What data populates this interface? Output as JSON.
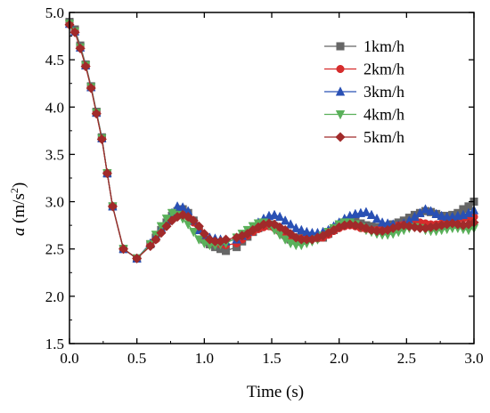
{
  "chart_data": {
    "type": "line",
    "xlabel": "Time (s)",
    "ylabel_italic": "a",
    "ylabel_unit_prefix": "(m/s",
    "ylabel_unit_exp": "2",
    "ylabel_unit_suffix": ")",
    "xlim": [
      0.0,
      3.0
    ],
    "ylim": [
      1.5,
      5.0
    ],
    "xticks": [
      "0.0",
      "0.5",
      "1.0",
      "1.5",
      "2.0",
      "2.5",
      "3.0"
    ],
    "yticks": [
      "1.5",
      "2.0",
      "2.5",
      "3.0",
      "3.5",
      "4.0",
      "4.5",
      "5.0"
    ],
    "legend_position": "top-right",
    "series": [
      {
        "name": "1km/h",
        "color": "#666666",
        "marker": "square",
        "x": [
          0.0,
          0.04,
          0.08,
          0.12,
          0.16,
          0.2,
          0.24,
          0.28,
          0.32,
          0.4,
          0.5,
          0.6,
          0.64,
          0.68,
          0.72,
          0.76,
          0.8,
          0.84,
          0.88,
          0.92,
          0.96,
          1.0,
          1.04,
          1.08,
          1.12,
          1.16,
          1.24,
          1.28,
          1.32,
          1.36,
          1.4,
          1.44,
          1.48,
          1.52,
          1.56,
          1.6,
          1.64,
          1.68,
          1.72,
          1.76,
          1.8,
          1.84,
          1.88,
          1.92,
          1.96,
          2.0,
          2.04,
          2.08,
          2.12,
          2.16,
          2.2,
          2.24,
          2.28,
          2.32,
          2.36,
          2.4,
          2.44,
          2.48,
          2.52,
          2.56,
          2.6,
          2.64,
          2.68,
          2.72,
          2.76,
          2.8,
          2.84,
          2.88,
          2.92,
          2.96,
          3.0
        ],
        "y": [
          4.9,
          4.82,
          4.65,
          4.45,
          4.22,
          3.95,
          3.68,
          3.3,
          2.95,
          2.5,
          2.4,
          2.55,
          2.62,
          2.7,
          2.78,
          2.85,
          2.9,
          2.92,
          2.88,
          2.8,
          2.7,
          2.6,
          2.55,
          2.52,
          2.5,
          2.48,
          2.52,
          2.58,
          2.63,
          2.68,
          2.72,
          2.75,
          2.76,
          2.74,
          2.7,
          2.65,
          2.6,
          2.6,
          2.62,
          2.64,
          2.63,
          2.62,
          2.62,
          2.66,
          2.7,
          2.75,
          2.78,
          2.8,
          2.79,
          2.77,
          2.75,
          2.74,
          2.73,
          2.73,
          2.74,
          2.76,
          2.78,
          2.8,
          2.83,
          2.86,
          2.88,
          2.9,
          2.89,
          2.87,
          2.85,
          2.85,
          2.86,
          2.88,
          2.92,
          2.95,
          3.0
        ]
      },
      {
        "name": "2km/h",
        "color": "#d62c2c",
        "marker": "circle",
        "x": [
          0.0,
          0.04,
          0.08,
          0.12,
          0.16,
          0.2,
          0.24,
          0.28,
          0.32,
          0.4,
          0.5,
          0.6,
          0.64,
          0.68,
          0.72,
          0.76,
          0.8,
          0.84,
          0.88,
          0.92,
          0.96,
          1.0,
          1.04,
          1.08,
          1.12,
          1.16,
          1.24,
          1.28,
          1.32,
          1.36,
          1.4,
          1.44,
          1.48,
          1.52,
          1.56,
          1.6,
          1.64,
          1.68,
          1.72,
          1.76,
          1.8,
          1.84,
          1.88,
          1.92,
          1.96,
          2.0,
          2.04,
          2.08,
          2.12,
          2.16,
          2.2,
          2.24,
          2.28,
          2.32,
          2.36,
          2.4,
          2.44,
          2.48,
          2.52,
          2.56,
          2.6,
          2.64,
          2.68,
          2.72,
          2.76,
          2.8,
          2.84,
          2.88,
          2.92,
          2.96,
          3.0
        ],
        "y": [
          4.88,
          4.8,
          4.63,
          4.44,
          4.21,
          3.94,
          3.67,
          3.3,
          2.95,
          2.5,
          2.4,
          2.54,
          2.6,
          2.68,
          2.75,
          2.82,
          2.86,
          2.87,
          2.84,
          2.78,
          2.7,
          2.62,
          2.58,
          2.56,
          2.55,
          2.54,
          2.56,
          2.6,
          2.64,
          2.68,
          2.71,
          2.73,
          2.74,
          2.72,
          2.68,
          2.64,
          2.61,
          2.6,
          2.61,
          2.62,
          2.62,
          2.61,
          2.62,
          2.65,
          2.69,
          2.72,
          2.74,
          2.75,
          2.74,
          2.72,
          2.71,
          2.7,
          2.7,
          2.71,
          2.72,
          2.74,
          2.75,
          2.76,
          2.77,
          2.78,
          2.78,
          2.77,
          2.76,
          2.76,
          2.77,
          2.79,
          2.8,
          2.81,
          2.82,
          2.83,
          2.84
        ]
      },
      {
        "name": "3km/h",
        "color": "#2950b4",
        "marker": "triangle",
        "x": [
          0.0,
          0.04,
          0.08,
          0.12,
          0.16,
          0.2,
          0.24,
          0.28,
          0.32,
          0.4,
          0.5,
          0.6,
          0.64,
          0.68,
          0.72,
          0.76,
          0.8,
          0.84,
          0.88,
          0.92,
          0.96,
          1.0,
          1.04,
          1.08,
          1.12,
          1.16,
          1.24,
          1.28,
          1.32,
          1.36,
          1.4,
          1.44,
          1.48,
          1.52,
          1.56,
          1.6,
          1.64,
          1.68,
          1.72,
          1.76,
          1.8,
          1.84,
          1.88,
          1.92,
          1.96,
          2.0,
          2.04,
          2.08,
          2.12,
          2.16,
          2.2,
          2.24,
          2.28,
          2.32,
          2.36,
          2.4,
          2.44,
          2.48,
          2.52,
          2.56,
          2.6,
          2.64,
          2.68,
          2.72,
          2.76,
          2.8,
          2.84,
          2.88,
          2.92,
          2.96,
          3.0
        ],
        "y": [
          4.88,
          4.8,
          4.63,
          4.44,
          4.21,
          3.94,
          3.67,
          3.3,
          2.95,
          2.5,
          2.4,
          2.56,
          2.64,
          2.72,
          2.8,
          2.88,
          2.95,
          2.94,
          2.9,
          2.8,
          2.7,
          2.65,
          2.62,
          2.61,
          2.6,
          2.58,
          2.6,
          2.64,
          2.68,
          2.73,
          2.78,
          2.82,
          2.85,
          2.86,
          2.84,
          2.8,
          2.76,
          2.72,
          2.7,
          2.68,
          2.67,
          2.67,
          2.68,
          2.7,
          2.74,
          2.78,
          2.82,
          2.85,
          2.87,
          2.88,
          2.89,
          2.86,
          2.82,
          2.78,
          2.77,
          2.76,
          2.75,
          2.77,
          2.8,
          2.84,
          2.88,
          2.92,
          2.9,
          2.87,
          2.85,
          2.84,
          2.84,
          2.85,
          2.86,
          2.88,
          2.91
        ]
      },
      {
        "name": "4km/h",
        "color": "#5ab05a",
        "marker": "triangle-down",
        "x": [
          0.0,
          0.04,
          0.08,
          0.12,
          0.16,
          0.2,
          0.24,
          0.28,
          0.32,
          0.4,
          0.5,
          0.6,
          0.64,
          0.68,
          0.72,
          0.76,
          0.8,
          0.84,
          0.88,
          0.92,
          0.96,
          1.0,
          1.04,
          1.08,
          1.12,
          1.16,
          1.24,
          1.28,
          1.32,
          1.36,
          1.4,
          1.44,
          1.48,
          1.52,
          1.56,
          1.6,
          1.64,
          1.68,
          1.72,
          1.76,
          1.8,
          1.84,
          1.88,
          1.92,
          1.96,
          2.0,
          2.04,
          2.08,
          2.12,
          2.16,
          2.2,
          2.24,
          2.28,
          2.32,
          2.36,
          2.4,
          2.44,
          2.48,
          2.52,
          2.56,
          2.6,
          2.64,
          2.68,
          2.72,
          2.76,
          2.8,
          2.84,
          2.88,
          2.92,
          2.96,
          3.0
        ],
        "y": [
          4.88,
          4.8,
          4.63,
          4.44,
          4.21,
          3.94,
          3.67,
          3.3,
          2.95,
          2.5,
          2.4,
          2.55,
          2.65,
          2.74,
          2.82,
          2.88,
          2.86,
          2.82,
          2.76,
          2.68,
          2.6,
          2.56,
          2.54,
          2.54,
          2.55,
          2.56,
          2.62,
          2.66,
          2.7,
          2.74,
          2.77,
          2.78,
          2.75,
          2.7,
          2.65,
          2.6,
          2.56,
          2.54,
          2.54,
          2.56,
          2.58,
          2.6,
          2.64,
          2.68,
          2.72,
          2.76,
          2.78,
          2.78,
          2.76,
          2.73,
          2.7,
          2.68,
          2.66,
          2.65,
          2.65,
          2.66,
          2.68,
          2.7,
          2.72,
          2.73,
          2.72,
          2.7,
          2.69,
          2.69,
          2.7,
          2.71,
          2.72,
          2.72,
          2.71,
          2.7,
          2.72
        ]
      },
      {
        "name": "5km/h",
        "color": "#a12a2a",
        "marker": "diamond",
        "x": [
          0.0,
          0.04,
          0.08,
          0.12,
          0.16,
          0.2,
          0.24,
          0.28,
          0.32,
          0.4,
          0.5,
          0.6,
          0.64,
          0.68,
          0.72,
          0.76,
          0.8,
          0.84,
          0.88,
          0.92,
          0.96,
          1.0,
          1.04,
          1.08,
          1.12,
          1.16,
          1.24,
          1.28,
          1.32,
          1.36,
          1.4,
          1.44,
          1.48,
          1.52,
          1.56,
          1.6,
          1.64,
          1.68,
          1.72,
          1.76,
          1.8,
          1.84,
          1.88,
          1.92,
          1.96,
          2.0,
          2.04,
          2.08,
          2.12,
          2.16,
          2.2,
          2.24,
          2.28,
          2.32,
          2.36,
          2.4,
          2.44,
          2.48,
          2.52,
          2.56,
          2.6,
          2.64,
          2.68,
          2.72,
          2.76,
          2.8,
          2.84,
          2.88,
          2.92,
          2.96,
          3.0
        ],
        "y": [
          4.87,
          4.79,
          4.62,
          4.43,
          4.2,
          3.93,
          3.66,
          3.3,
          2.95,
          2.5,
          2.4,
          2.53,
          2.6,
          2.67,
          2.74,
          2.8,
          2.84,
          2.86,
          2.84,
          2.8,
          2.74,
          2.66,
          2.6,
          2.58,
          2.58,
          2.6,
          2.62,
          2.64,
          2.66,
          2.7,
          2.73,
          2.76,
          2.77,
          2.76,
          2.73,
          2.7,
          2.66,
          2.62,
          2.6,
          2.6,
          2.6,
          2.62,
          2.64,
          2.67,
          2.7,
          2.73,
          2.75,
          2.76,
          2.75,
          2.74,
          2.72,
          2.7,
          2.69,
          2.69,
          2.7,
          2.72,
          2.74,
          2.75,
          2.74,
          2.73,
          2.72,
          2.72,
          2.73,
          2.74,
          2.75,
          2.76,
          2.77,
          2.76,
          2.75,
          2.76,
          2.78
        ]
      }
    ]
  }
}
